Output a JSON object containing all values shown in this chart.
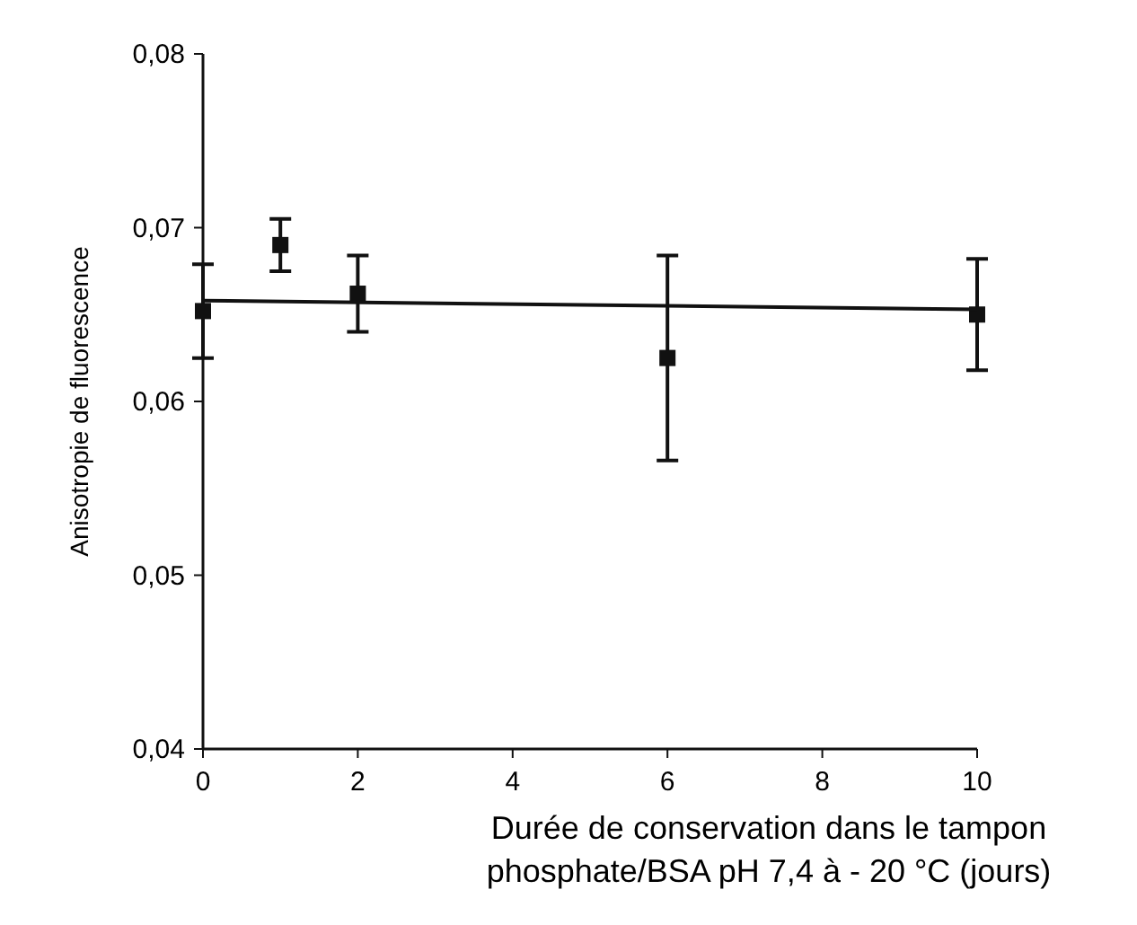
{
  "chart_data": {
    "type": "scatter",
    "xlabel": "Durée de conservation dans le tampon phosphate/BSA pH 7,4 à - 20 °C (jours)",
    "ylabel": "Anisotropie de fluorescence",
    "x": [
      0,
      1,
      2,
      6,
      10
    ],
    "series": [
      {
        "marker": "square",
        "color": "#111111",
        "values": [
          0.0652,
          0.069,
          0.0662,
          0.0625,
          0.065
        ],
        "errors": [
          0.0027,
          0.0015,
          0.0022,
          0.0059,
          0.0032
        ]
      },
      {
        "type": "line",
        "color": "#111111",
        "x": [
          0,
          10
        ],
        "values": [
          0.0658,
          0.0653
        ]
      }
    ],
    "xlim": [
      0,
      10
    ],
    "xticks": [
      0,
      2,
      4,
      6,
      8,
      10
    ],
    "ylim": [
      0.04,
      0.08
    ],
    "yticks": [
      {
        "value": 0.04,
        "label": "0,04"
      },
      {
        "value": 0.05,
        "label": "0,05"
      },
      {
        "value": 0.06,
        "label": "0,06"
      },
      {
        "value": 0.07,
        "label": "0,07"
      },
      {
        "value": 0.08,
        "label": "0,08"
      }
    ],
    "grid": false
  }
}
